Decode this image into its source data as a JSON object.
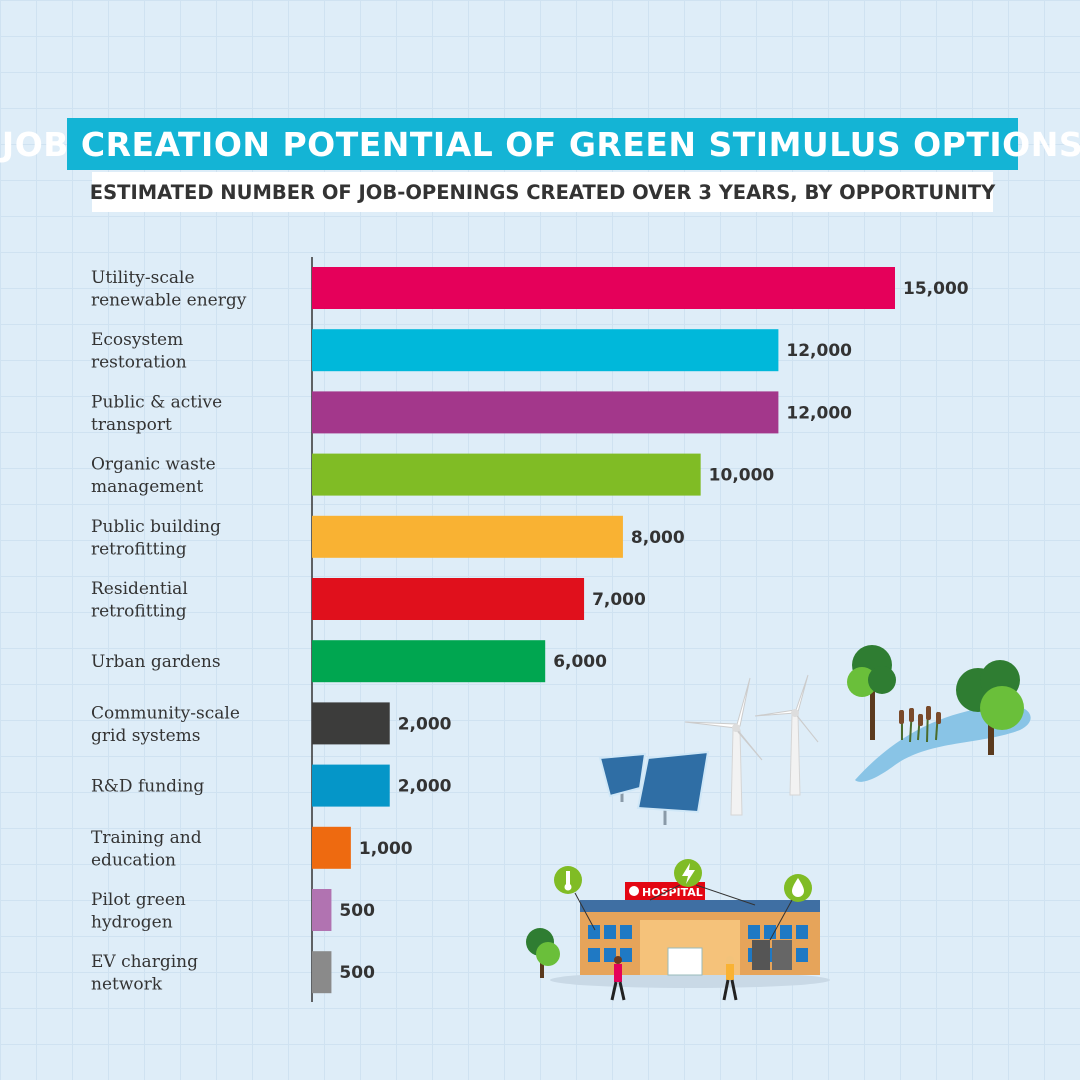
{
  "chart_data": {
    "type": "bar",
    "orientation": "horizontal",
    "title": "JOB CREATION POTENTIAL OF GREEN STIMULUS OPTIONS",
    "subtitle": "ESTIMATED NUMBER OF JOB-OPENINGS CREATED OVER 3 YEARS, BY OPPORTUNITY",
    "categories": [
      [
        "Utility-scale",
        "renewable energy"
      ],
      [
        "Ecosystem",
        "restoration"
      ],
      [
        "Public & active",
        "transport"
      ],
      [
        "Organic waste",
        "management"
      ],
      [
        "Public building",
        "retrofitting"
      ],
      [
        "Residential",
        "retrofitting"
      ],
      [
        "Urban gardens"
      ],
      [
        "Community-scale",
        "grid systems"
      ],
      [
        "R&D funding"
      ],
      [
        "Training and",
        "education"
      ],
      [
        "Pilot green",
        "hydrogen"
      ],
      [
        "EV charging",
        "network"
      ]
    ],
    "values": [
      15000,
      12000,
      12000,
      10000,
      8000,
      7000,
      6000,
      2000,
      2000,
      1000,
      500,
      500
    ],
    "value_labels": [
      "15,000",
      "12,000",
      "12,000",
      "10,000",
      "8,000",
      "7,000",
      "6,000",
      "2,000",
      "2,000",
      "1,000",
      "500",
      "500"
    ],
    "colors": [
      "#e5005a",
      "#00b8da",
      "#a3378b",
      "#80bc25",
      "#f9b233",
      "#e0101c",
      "#00a650",
      "#3c3c3b",
      "#0596c8",
      "#ee6a10",
      "#b173b1",
      "#8a8a8a"
    ],
    "xlim": [
      0,
      15000
    ],
    "grid": false,
    "legend": "none"
  },
  "illustration": {
    "hospital_sign": "HOSPITAL"
  }
}
